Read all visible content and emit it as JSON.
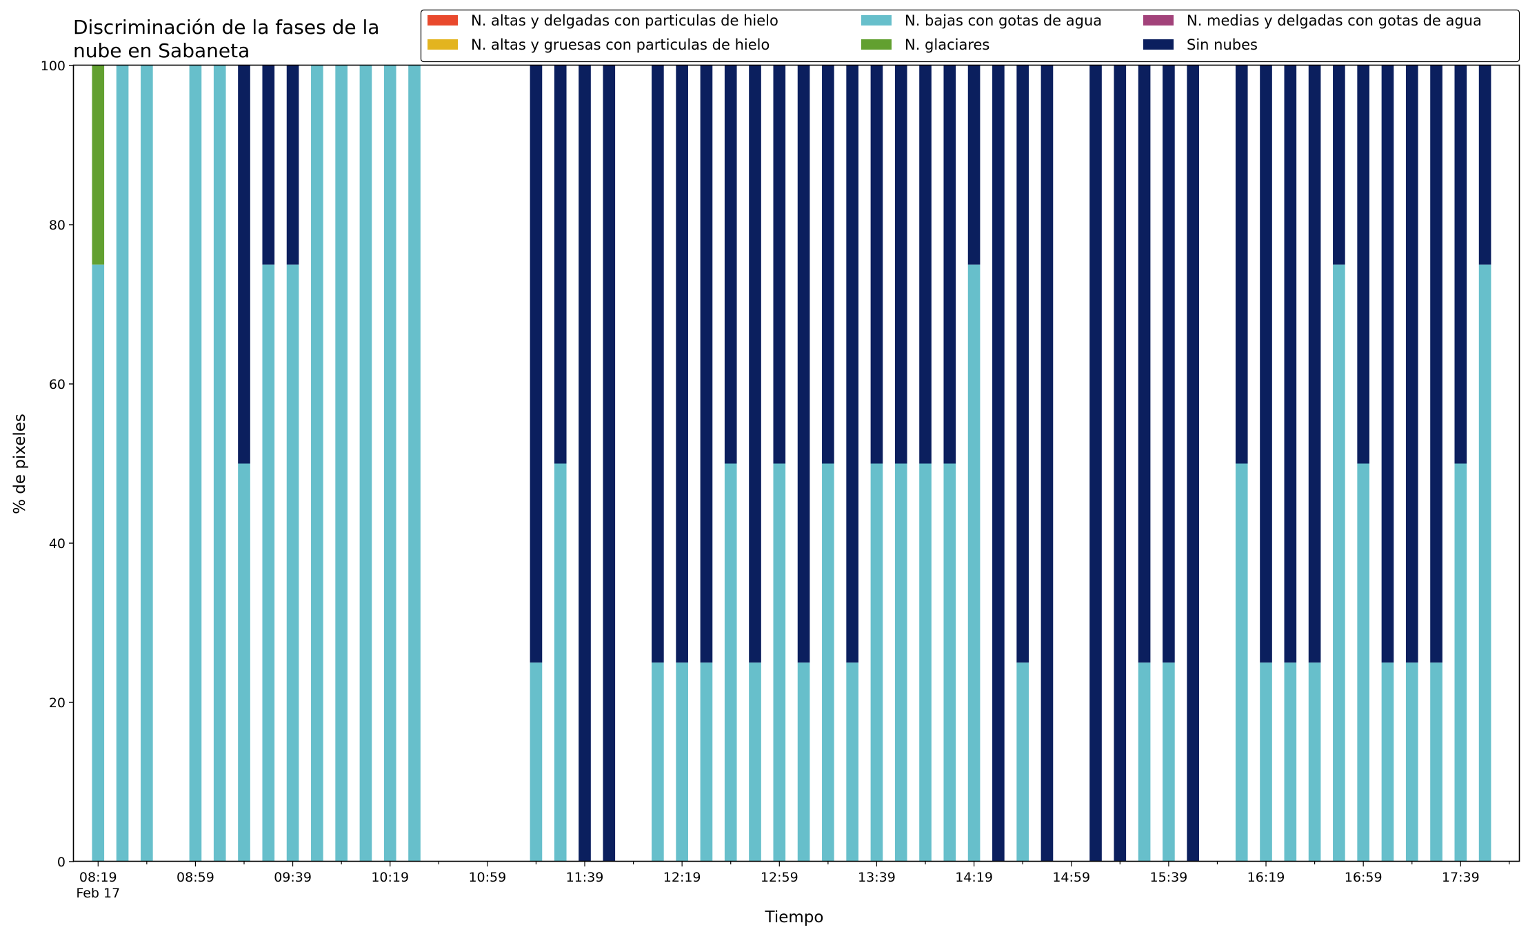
{
  "chart_data": {
    "type": "bar",
    "stacked": true,
    "title": "Discriminación de la fases de la nube en Sabaneta",
    "title_lines": [
      "Discriminación de la fases de la",
      "nube en Sabaneta"
    ],
    "xlabel": "Tiempo",
    "ylabel": "% de pixeles",
    "ylim": [
      0,
      100
    ],
    "yticks": [
      0,
      20,
      40,
      60,
      80,
      100
    ],
    "xlim": [
      "08:09",
      "18:03"
    ],
    "x_tick_labels": [
      "08:19",
      "08:59",
      "09:39",
      "10:19",
      "10:59",
      "11:39",
      "12:19",
      "12:59",
      "13:39",
      "14:19",
      "14:59",
      "15:39",
      "16:19",
      "16:59",
      "17:39"
    ],
    "x_date_label": "Feb 17",
    "grid": false,
    "legend_position": "top-right",
    "x": [
      "08:19",
      "08:29",
      "08:39",
      "08:59",
      "09:09",
      "09:19",
      "09:29",
      "09:39",
      "09:49",
      "09:59",
      "10:09",
      "10:19",
      "10:29",
      "11:19",
      "11:29",
      "11:39",
      "11:49",
      "12:09",
      "12:19",
      "12:29",
      "12:39",
      "12:49",
      "12:59",
      "13:09",
      "13:19",
      "13:29",
      "13:39",
      "13:49",
      "13:59",
      "14:09",
      "14:19",
      "14:29",
      "14:39",
      "14:49",
      "15:09",
      "15:19",
      "15:29",
      "15:39",
      "15:49",
      "16:09",
      "16:19",
      "16:29",
      "16:39",
      "16:49",
      "16:59",
      "17:09",
      "17:19",
      "17:29",
      "17:39",
      "17:49"
    ],
    "series": [
      {
        "name": "N. altas y delgadas con particulas de hielo",
        "color": "#e9492d",
        "values": [
          0,
          0,
          0,
          0,
          0,
          0,
          0,
          0,
          0,
          0,
          0,
          0,
          0,
          0,
          0,
          0,
          0,
          0,
          0,
          0,
          0,
          0,
          0,
          0,
          0,
          0,
          0,
          0,
          0,
          0,
          0,
          0,
          0,
          0,
          0,
          0,
          0,
          0,
          0,
          0,
          0,
          0,
          0,
          0,
          0,
          0,
          0,
          0,
          0,
          0
        ]
      },
      {
        "name": "N. altas y gruesas con particulas de hielo",
        "color": "#e3b41f",
        "values": [
          0,
          0,
          0,
          0,
          0,
          0,
          0,
          0,
          0,
          0,
          0,
          0,
          0,
          0,
          0,
          0,
          0,
          0,
          0,
          0,
          0,
          0,
          0,
          0,
          0,
          0,
          0,
          0,
          0,
          0,
          0,
          0,
          0,
          0,
          0,
          0,
          0,
          0,
          0,
          0,
          0,
          0,
          0,
          0,
          0,
          0,
          0,
          0,
          0,
          0
        ]
      },
      {
        "name": "N. bajas con gotas de agua",
        "color": "#67bfcb",
        "values": [
          75,
          100,
          100,
          100,
          100,
          50,
          75,
          75,
          100,
          100,
          100,
          100,
          100,
          25,
          50,
          0,
          0,
          25,
          25,
          25,
          50,
          25,
          50,
          25,
          50,
          25,
          50,
          50,
          50,
          50,
          75,
          0,
          25,
          0,
          0,
          0,
          25,
          25,
          0,
          50,
          25,
          25,
          25,
          75,
          50,
          25,
          25,
          25,
          50,
          75
        ]
      },
      {
        "name": "N. glaciares",
        "color": "#62a030",
        "values": [
          25,
          0,
          0,
          0,
          0,
          0,
          0,
          0,
          0,
          0,
          0,
          0,
          0,
          0,
          0,
          0,
          0,
          0,
          0,
          0,
          0,
          0,
          0,
          0,
          0,
          0,
          0,
          0,
          0,
          0,
          0,
          0,
          0,
          0,
          0,
          0,
          0,
          0,
          0,
          0,
          0,
          0,
          0,
          0,
          0,
          0,
          0,
          0,
          0,
          0
        ]
      },
      {
        "name": "N. medias y delgadas con gotas de agua",
        "color": "#a2427a",
        "values": [
          0,
          0,
          0,
          0,
          0,
          0,
          0,
          0,
          0,
          0,
          0,
          0,
          0,
          0,
          0,
          0,
          0,
          0,
          0,
          0,
          0,
          0,
          0,
          0,
          0,
          0,
          0,
          0,
          0,
          0,
          0,
          0,
          0,
          0,
          0,
          0,
          0,
          0,
          0,
          0,
          0,
          0,
          0,
          0,
          0,
          0,
          0,
          0,
          0,
          0
        ]
      },
      {
        "name": "Sin nubes",
        "color": "#0b1f5e",
        "values": [
          0,
          0,
          0,
          0,
          0,
          50,
          25,
          25,
          0,
          0,
          0,
          0,
          0,
          75,
          50,
          100,
          100,
          75,
          75,
          75,
          50,
          75,
          50,
          75,
          50,
          75,
          50,
          50,
          50,
          50,
          25,
          100,
          75,
          100,
          100,
          100,
          75,
          75,
          100,
          50,
          75,
          75,
          75,
          25,
          50,
          75,
          75,
          75,
          50,
          25
        ]
      }
    ]
  }
}
